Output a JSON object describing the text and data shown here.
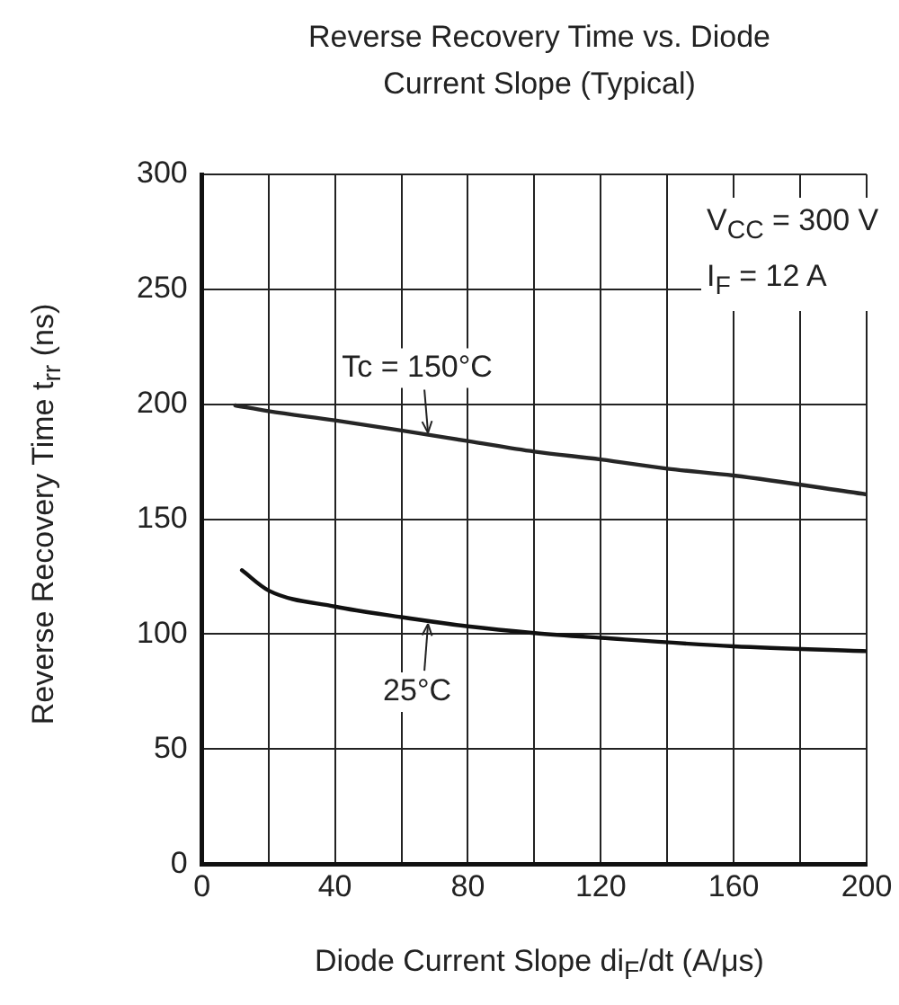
{
  "chart_data": {
    "type": "line",
    "title": "Reverse Recovery Time vs. Diode Current Slope (Typical)",
    "xlabel": "Diode Current Slope   di$_{F}$/dt  (A/μs)",
    "ylabel": "Reverse Recovery Time   t$_{rr}$  (ns)",
    "x": [
      10,
      20,
      40,
      60,
      80,
      100,
      120,
      140,
      160,
      200
    ],
    "series": [
      {
        "color": "#262626",
        "values": [
          199.5,
          197,
          193,
          188.6,
          184,
          179.4,
          176,
          172,
          169,
          160.8
        ]
      },
      {
        "color": "#111111",
        "x": [
          12,
          20,
          40,
          60,
          80,
          100,
          120,
          160,
          200
        ],
        "values": [
          127.8,
          119,
          112,
          107.4,
          103.4,
          100.5,
          98.4,
          94.7,
          92.6
        ]
      }
    ],
    "annotations": [
      "V$_{CC}$ = 300 V",
      "I$_{F}$ = 12 A",
      {
        "text": "Tc = 150°C",
        "x": 68,
        "y": 186
      },
      {
        "text": "25°C",
        "x": 68,
        "y": 106
      }
    ],
    "xlim": [
      0,
      200
    ],
    "xticks": [
      0,
      {
        "value": 20,
        "label": null
      },
      40,
      {
        "value": 60,
        "label": null
      },
      80,
      {
        "value": 100,
        "label": null
      },
      120,
      {
        "value": 140,
        "label": null
      },
      160,
      {
        "value": 180,
        "label": null
      },
      200
    ],
    "ylim": [
      0,
      300
    ],
    "yticks": [
      0,
      50,
      100,
      150,
      200,
      250,
      300
    ],
    "grid": true,
    "legend": false,
    "marker": "none",
    "line_style": "solid"
  }
}
